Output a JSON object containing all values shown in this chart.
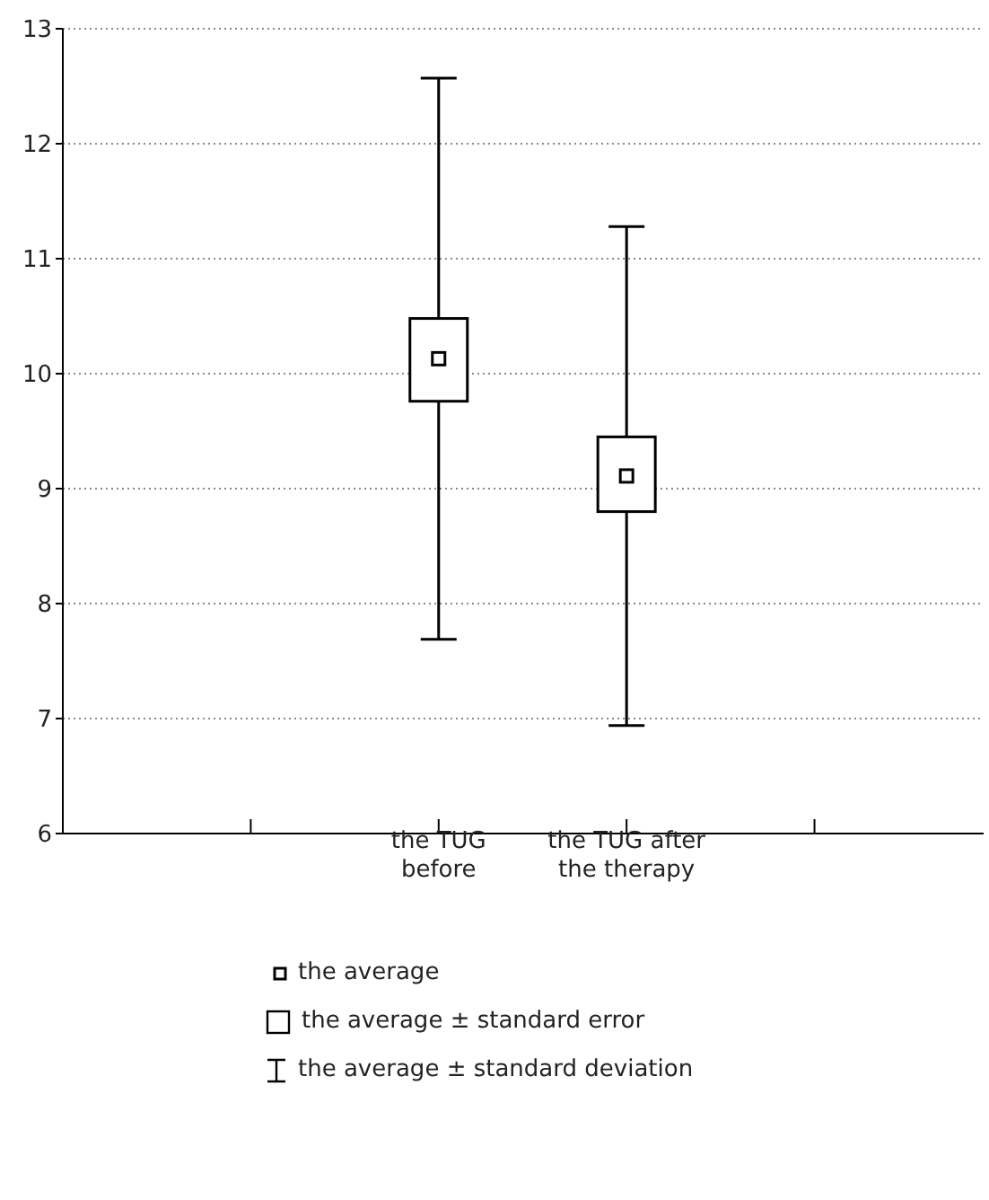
{
  "chart_data": {
    "type": "box",
    "categories": [
      null,
      "the TUG\nbefore",
      "the TUG after\nthe therapy",
      null
    ],
    "boxes": [
      null,
      {
        "low": 7.69,
        "q1": 9.76,
        "median": 10.13,
        "q3": 10.48,
        "high": 12.57
      },
      {
        "low": 6.94,
        "q1": 8.8,
        "median": 9.11,
        "q3": 9.45,
        "high": 11.28
      },
      null
    ],
    "ylim": [
      6,
      13
    ],
    "yticks": [
      6,
      7,
      8,
      9,
      10,
      11,
      12,
      13
    ],
    "grid": "y",
    "annotations": [
      "the average",
      "the average ± standard error",
      "the average ± standard deviation"
    ]
  }
}
